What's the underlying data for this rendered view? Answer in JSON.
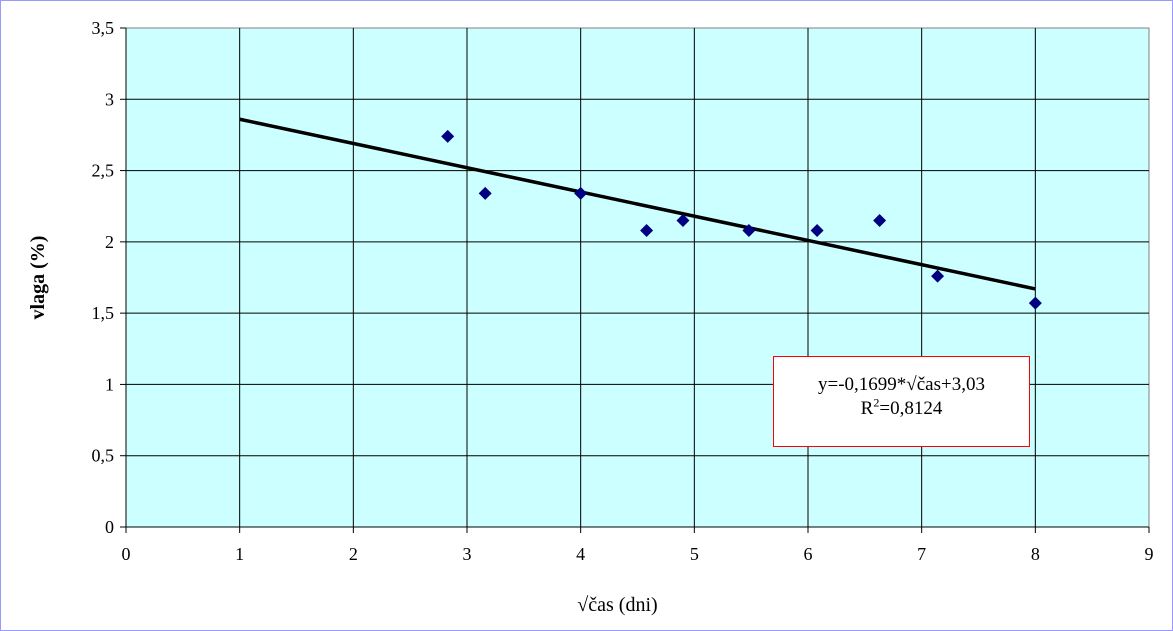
{
  "chart_data": {
    "type": "scatter",
    "xlabel": "√čas (dni)",
    "ylabel": "vlaga (%)",
    "xlim": [
      0,
      9
    ],
    "ylim": [
      0,
      3.5
    ],
    "x_ticks": [
      "0",
      "1",
      "2",
      "3",
      "4",
      "5",
      "6",
      "7",
      "8",
      "9"
    ],
    "y_ticks": [
      "0",
      "0,5",
      "1",
      "1,5",
      "2",
      "2,5",
      "3",
      "3,5"
    ],
    "grid": true,
    "plot_background": "#ccffff",
    "marker_color": "#000080",
    "points": [
      {
        "x": 2.83,
        "y": 2.74
      },
      {
        "x": 3.16,
        "y": 2.34
      },
      {
        "x": 4.0,
        "y": 2.34
      },
      {
        "x": 4.58,
        "y": 2.08
      },
      {
        "x": 4.9,
        "y": 2.15
      },
      {
        "x": 5.48,
        "y": 2.08
      },
      {
        "x": 6.08,
        "y": 2.08
      },
      {
        "x": 6.63,
        "y": 2.15
      },
      {
        "x": 7.14,
        "y": 1.76
      },
      {
        "x": 8.0,
        "y": 1.57
      }
    ],
    "trendline": {
      "x": [
        1,
        8
      ],
      "y": [
        2.86,
        1.67
      ],
      "color": "#000000"
    },
    "annotation": {
      "equation": "y=-0,1699*√čas+3,03",
      "r2_prefix": "R",
      "r2_exp": "2",
      "r2_value": "=0,8124",
      "border_color": "#ff0000"
    }
  }
}
